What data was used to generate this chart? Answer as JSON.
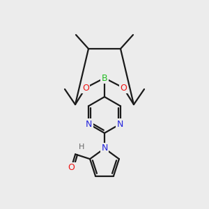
{
  "background_color": "#ececec",
  "bond_color": "#1a1a1a",
  "bond_width": 1.6,
  "atom_colors": {
    "B": "#22bb22",
    "O": "#ee1111",
    "N": "#2222dd",
    "C": "#1a1a1a",
    "H": "#666666"
  },
  "fig_size": [
    3.0,
    3.0
  ],
  "dpi": 100,
  "xlim": [
    0,
    300
  ],
  "ylim": [
    0,
    300
  ]
}
